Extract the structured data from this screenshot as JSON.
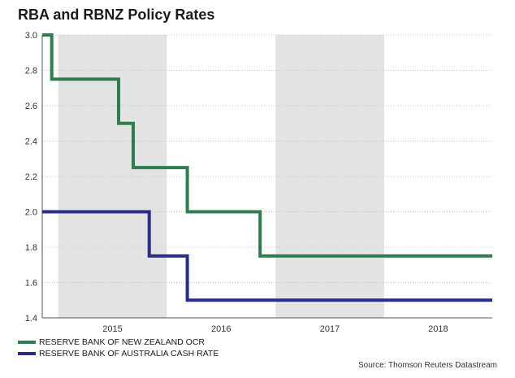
{
  "chart_data": {
    "type": "line",
    "title": "RBA and RBNZ Policy Rates",
    "xlabel": "",
    "ylabel": "",
    "ylim": [
      1.4,
      3.0
    ],
    "yticks": [
      "3.0",
      "2.8",
      "2.6",
      "2.4",
      "2.2",
      "2.0",
      "1.8",
      "1.6",
      "1.4"
    ],
    "xlim": [
      "2014-11-08",
      "2018-12-31"
    ],
    "xticks": [
      "2015",
      "2016",
      "2017",
      "2018"
    ],
    "shaded_years": [
      "2015",
      "2017"
    ],
    "grid": true,
    "legend_position": "bottom-left",
    "series": [
      {
        "name": "RESERVE BANK OF NEW ZEALAND OCR",
        "color": "#2e7d4f",
        "step": true,
        "points": [
          [
            "2014-11-08",
            3.0
          ],
          [
            "2014-12-10",
            3.0
          ],
          [
            "2014-12-10",
            2.75
          ],
          [
            "2015-07-23",
            2.75
          ],
          [
            "2015-07-23",
            2.5
          ],
          [
            "2015-09-10",
            2.5
          ],
          [
            "2015-09-10",
            2.25
          ],
          [
            "2015-12-10",
            2.25
          ],
          [
            "2016-03-10",
            2.25
          ],
          [
            "2016-03-10",
            2.0
          ],
          [
            "2016-08-11",
            2.0
          ],
          [
            "2016-11-10",
            2.0
          ],
          [
            "2016-11-10",
            1.75
          ],
          [
            "2018-12-31",
            1.75
          ]
        ]
      },
      {
        "name": "RESERVE BANK OF AUSTRALIA CASH RATE",
        "color": "#2b2b8a",
        "step": true,
        "points": [
          [
            "2014-11-08",
            2.0
          ],
          [
            "2015-11-03",
            2.0
          ],
          [
            "2015-11-03",
            1.75
          ],
          [
            "2016-02-02",
            1.75
          ],
          [
            "2016-03-10",
            1.75
          ],
          [
            "2016-03-10",
            1.5
          ],
          [
            "2018-12-31",
            1.5
          ]
        ]
      }
    ]
  },
  "source": "Source: Thomson Reuters Datastream"
}
